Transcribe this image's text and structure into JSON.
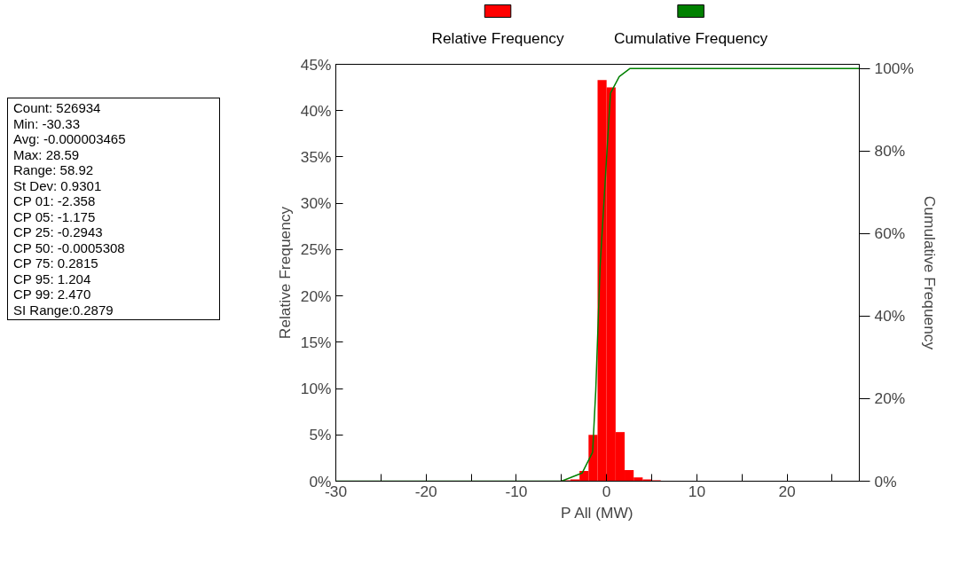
{
  "chart_data": {
    "type": "histogram",
    "xlabel": "P All (MW)",
    "ylabel": "Relative Frequency",
    "y2label": "Cumulative Frequency",
    "bins": [
      -8,
      -7,
      -6,
      -5,
      -4,
      -3,
      -2,
      -1,
      0,
      1,
      2,
      3,
      4,
      5,
      6,
      7,
      8,
      9,
      10
    ],
    "series": [
      {
        "name": "Relative Frequency",
        "color": "#ff0000",
        "values": [
          0,
          0,
          0,
          0.1,
          0.2,
          1.1,
          5,
          43.3,
          42.5,
          5.3,
          1.2,
          0.4,
          0.2,
          0.1,
          0,
          0,
          0,
          0
        ]
      },
      {
        "name": "Cumulative Frequency",
        "type": "line",
        "axis": "y2",
        "color": "#008000",
        "x": [
          -30,
          -5,
          -2.7,
          -1.55,
          -1.2,
          -0.72,
          -0.23,
          0.43,
          1.4,
          2.6,
          5.5,
          28
        ],
        "values": [
          0,
          0,
          2,
          7,
          22,
          52,
          70,
          94,
          98,
          100,
          100,
          100
        ]
      }
    ],
    "xlim": [
      -30,
      28
    ],
    "xticks": [
      -30,
      {
        "value": -25,
        "label": null
      },
      -20,
      {
        "value": -15,
        "label": null
      },
      -10,
      {
        "value": -5,
        "label": null
      },
      0,
      {
        "value": 5,
        "label": null
      },
      10,
      {
        "value": 15,
        "label": null
      },
      20,
      {
        "value": 25,
        "label": null
      }
    ],
    "ylim": [
      0,
      45
    ],
    "yticks": [
      {
        "value": 0,
        "label": "0%"
      },
      {
        "value": 5,
        "label": "5%"
      },
      {
        "value": 10,
        "label": "10%"
      },
      {
        "value": 15,
        "label": "15%"
      },
      {
        "value": 20,
        "label": "20%"
      },
      {
        "value": 25,
        "label": "25%"
      },
      {
        "value": 30,
        "label": "30%"
      },
      {
        "value": 35,
        "label": "35%"
      },
      {
        "value": 40,
        "label": "40%"
      },
      {
        "value": 45,
        "label": "45%"
      }
    ],
    "y2lim": [
      0,
      101
    ],
    "y2ticks": [
      {
        "value": 0,
        "label": "0%"
      },
      {
        "value": 20,
        "label": "20%"
      },
      {
        "value": 40,
        "label": "40%"
      },
      {
        "value": 60,
        "label": "60%"
      },
      {
        "value": 80,
        "label": "80%"
      },
      {
        "value": 100,
        "label": "100%"
      }
    ],
    "grid": false,
    "legend": "top",
    "annotations": [
      "Count: 526934",
      "Min: -30.33",
      "Avg: -0.000003465",
      "Max: 28.59",
      "Range: 58.92",
      "St Dev: 0.9301",
      "CP 01: -2.358",
      "CP 05: -1.175",
      "CP 25: -0.2943",
      "CP 50: -0.0005308",
      "CP 75: 0.2815",
      "CP 95: 1.204",
      "CP 99: 2.470",
      "SI Range:0.2879"
    ]
  }
}
